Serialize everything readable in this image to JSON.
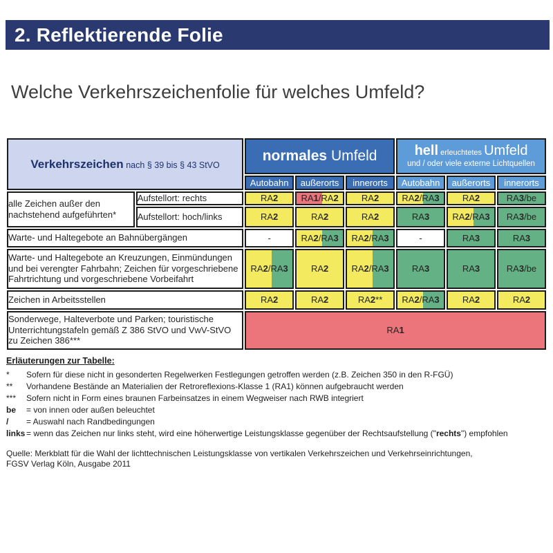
{
  "page": {
    "title_bar": "2. Reflektierende Folie",
    "subtitle": "Welche Verkehrszeichenfolie für welches Umfeld?"
  },
  "colors": {
    "navy": "#2A3A71",
    "header_left_bg": "#CDD6EE",
    "normal_blue": "#3A6DB4",
    "hell_blue": "#5D9CD8",
    "yellow": "#F4EA5F",
    "green": "#63B184",
    "red": "#EC747B",
    "white": "#FFFFFF",
    "border": "#1B1B1B"
  },
  "table": {
    "header": {
      "left_title": "Verkehrszeichen",
      "left_sub": "nach § 39 bis § 43 StVO",
      "normal_bold": "normales",
      "normal_rest": " Umfeld",
      "hell_bold": "hell",
      "hell_small": " erleuchtetes ",
      "hell_rest": "Umfeld",
      "hell_line2": "und / oder viele externe Lichtquellen",
      "columns_normal": [
        "Autobahn",
        "außerorts",
        "innerorts"
      ],
      "columns_hell": [
        "Autobahn",
        "außerorts",
        "innerorts"
      ]
    },
    "rows": [
      {
        "group_label": "alle Zeichen außer den nachstehend aufgeführten*",
        "label": "Aufstellort: rechts",
        "cells": [
          {
            "v": "RA2",
            "bg": "yellow"
          },
          {
            "v": "RA1/RA2",
            "bg": "red-yellow"
          },
          {
            "v": "RA2",
            "bg": "yellow"
          },
          {
            "v": "RA2/RA3",
            "bg": "yellow-green"
          },
          {
            "v": "RA2",
            "bg": "yellow"
          },
          {
            "v": "RA3/be",
            "bg": "green"
          }
        ]
      },
      {
        "label": "Aufstellort: hoch/links",
        "cells": [
          {
            "v": "RA2",
            "bg": "yellow"
          },
          {
            "v": "RA2",
            "bg": "yellow"
          },
          {
            "v": "RA2",
            "bg": "yellow"
          },
          {
            "v": "RA3",
            "bg": "green"
          },
          {
            "v": "RA2/RA3",
            "bg": "yellow-green"
          },
          {
            "v": "RA3/be",
            "bg": "green"
          }
        ]
      },
      {
        "label": "Warte- und Haltegebote an Bahnübergängen",
        "cells": [
          {
            "v": "-",
            "bg": "white"
          },
          {
            "v": "RA2/RA3",
            "bg": "yellow-green"
          },
          {
            "v": "RA2/RA3",
            "bg": "yellow-green"
          },
          {
            "v": "-",
            "bg": "white"
          },
          {
            "v": "RA3",
            "bg": "green"
          },
          {
            "v": "RA3",
            "bg": "green"
          }
        ]
      },
      {
        "label": "Warte- und Haltegebote an Kreuzungen, Einmündungen und bei verengter Fahrbahn; Zeichen für vorgeschriebene Fahrtrichtung und vorgeschriebene Vorbeifahrt",
        "cells": [
          {
            "v": "RA2/RA3",
            "bg": "yellow-green"
          },
          {
            "v": "RA2",
            "bg": "yellow"
          },
          {
            "v": "RA2/RA3",
            "bg": "yellow-green"
          },
          {
            "v": "RA3",
            "bg": "green"
          },
          {
            "v": "RA3",
            "bg": "green"
          },
          {
            "v": "RA3/be",
            "bg": "green"
          }
        ]
      },
      {
        "label": "Zeichen in Arbeitsstellen",
        "cells": [
          {
            "v": "RA2",
            "bg": "yellow"
          },
          {
            "v": "RA2",
            "bg": "yellow"
          },
          {
            "v": "RA2**",
            "bg": "yellow"
          },
          {
            "v": "RA2/RA3",
            "bg": "yellow-green"
          },
          {
            "v": "RA2",
            "bg": "yellow"
          },
          {
            "v": "RA2",
            "bg": "yellow"
          }
        ]
      },
      {
        "label": "Sonderwege, Halteverbote und Parken; touristische Unterrichtungstafeln gemäß Z 386 StVO und VwV-StVO zu Zeichen 386***",
        "merged": {
          "v": "RA1",
          "bg": "red"
        }
      }
    ]
  },
  "footnotes": {
    "title": "Erläuterungen zur Tabelle:",
    "items": [
      {
        "marker": "*",
        "text": "Sofern für diese nicht in gesonderten Regelwerken Festlegungen getroffen werden (z.B. Zeichen 350 in den R-FGÜ)"
      },
      {
        "marker": "**",
        "text": "Vorhandene Bestände an Materialien der Retroreflexions-Klasse 1 (RA1) können aufgebraucht werden"
      },
      {
        "marker": "***",
        "text": "Sofern nicht in Form eines braunen Farbeinsatzes in einem Wegweiser nach RWB integriert"
      },
      {
        "marker": "be",
        "text": "= von innen oder außen beleuchtet"
      },
      {
        "marker": "/",
        "text": "= Auswahl nach Randbedingungen"
      },
      {
        "marker": "links",
        "pre": "= wenn das Zeichen nur links steht, wird eine höherwertige Leistungsklasse gegenüber der Rechtsaufstellung (\"",
        "bold_word": "rechts",
        "post": "\") empfohlen"
      }
    ]
  },
  "source": {
    "line1": "Quelle: Merkblatt für die Wahl der lichttechnischen Leistungsklasse von vertikalen Verkehrszeichen und Verkehrseinrichtungen,",
    "line2": "FGSV Verlag Köln, Ausgabe 2011"
  }
}
